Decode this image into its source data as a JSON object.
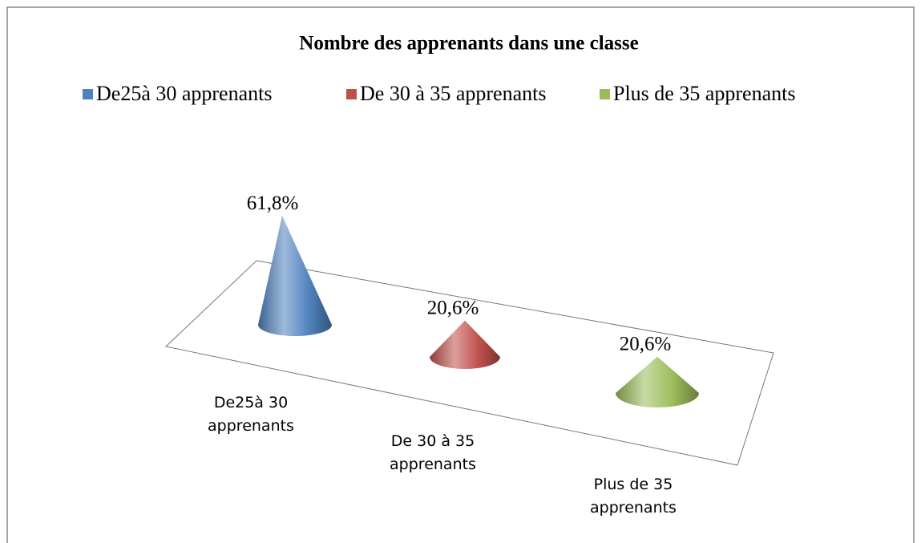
{
  "chart_data": {
    "type": "cone",
    "title": "Nombre des apprenants dans une classe",
    "categories": [
      "De25à 30 apprenants",
      "De 30 à 35 apprenants",
      "Plus de 35 apprenants"
    ],
    "values": [
      61.8,
      20.6,
      20.6
    ],
    "value_labels": [
      "61,8%",
      "20,6%",
      "20,6%"
    ],
    "colors": [
      "#4f81bd",
      "#c0504d",
      "#9bbb59"
    ],
    "legend": "top"
  }
}
